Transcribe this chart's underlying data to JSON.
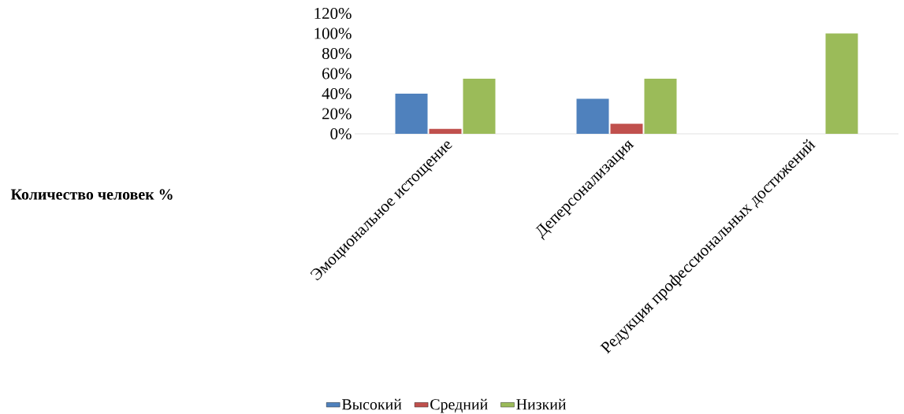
{
  "chart_data": {
    "type": "bar",
    "annotations": [
      "Количество человек %"
    ],
    "categories": [
      "Эмоциональное истощение",
      "Деперсонализация",
      "Редукция профессиональных достижений"
    ],
    "series": [
      {
        "name": "Высокий",
        "color": "#4f81bd",
        "values": [
          40,
          35,
          0
        ]
      },
      {
        "name": "Средний",
        "color": "#c0504d",
        "values": [
          5,
          10,
          0
        ]
      },
      {
        "name": "Низкий",
        "color": "#9bbb59",
        "values": [
          55,
          55,
          100
        ]
      }
    ],
    "ylim": [
      0,
      120
    ],
    "yticks": [
      {
        "value": 0,
        "label": "0%"
      },
      {
        "value": 20,
        "label": "20%"
      },
      {
        "value": 40,
        "label": "40%"
      },
      {
        "value": 60,
        "label": "60%"
      },
      {
        "value": 80,
        "label": "80%"
      },
      {
        "value": 100,
        "label": "100%"
      },
      {
        "value": 120,
        "label": "120%"
      }
    ],
    "legend": "bottom"
  }
}
